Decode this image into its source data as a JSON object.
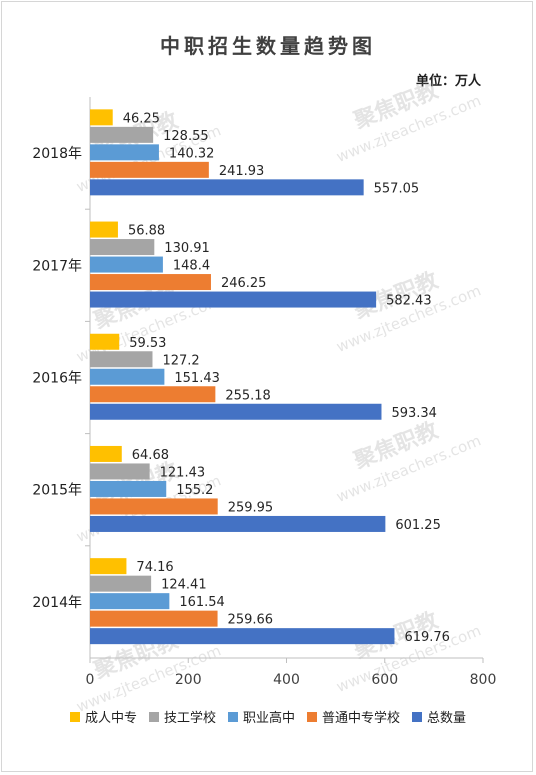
{
  "chart_data": {
    "type": "bar",
    "orientation": "horizontal",
    "title": "中职招生数量趋势图",
    "unit": "单位：万人",
    "categories": [
      "2018年",
      "2017年",
      "2016年",
      "2015年",
      "2014年"
    ],
    "series": [
      {
        "name": "成人中专",
        "color": "#FFC000",
        "values": [
          46.25,
          56.88,
          59.53,
          64.68,
          74.16
        ]
      },
      {
        "name": "技工学校",
        "color": "#A5A5A5",
        "values": [
          128.55,
          130.91,
          127.2,
          121.43,
          124.41
        ]
      },
      {
        "name": "职业高中",
        "color": "#5B9BD5",
        "values": [
          140.32,
          148.4,
          151.43,
          155.2,
          161.54
        ]
      },
      {
        "name": "普通中专学校",
        "color": "#ED7D31",
        "values": [
          241.93,
          246.25,
          255.18,
          259.95,
          259.66
        ]
      },
      {
        "name": "总数量",
        "color": "#4472C4",
        "values": [
          557.05,
          582.43,
          593.34,
          601.25,
          619.76
        ]
      }
    ],
    "value_labels": [
      [
        "46.25",
        "56.88",
        "59.53",
        "64.68",
        "74.16"
      ],
      [
        "128.55",
        "130.91",
        "127.2",
        "121.43",
        "124.41"
      ],
      [
        "140.32",
        "148.4",
        "151.43",
        "155.2",
        "161.54"
      ],
      [
        "241.93",
        "246.25",
        "255.18",
        "259.95",
        "259.66"
      ],
      [
        "557.05",
        "582.43",
        "593.34",
        "601.25",
        "619.76"
      ]
    ],
    "xlim": [
      0,
      800
    ],
    "xticks": [
      "0",
      "200",
      "400",
      "600",
      "800"
    ],
    "grid": false,
    "legend_position": "bottom"
  },
  "watermark": {
    "text": "聚焦职教",
    "url": "www.zjteachers.com"
  }
}
